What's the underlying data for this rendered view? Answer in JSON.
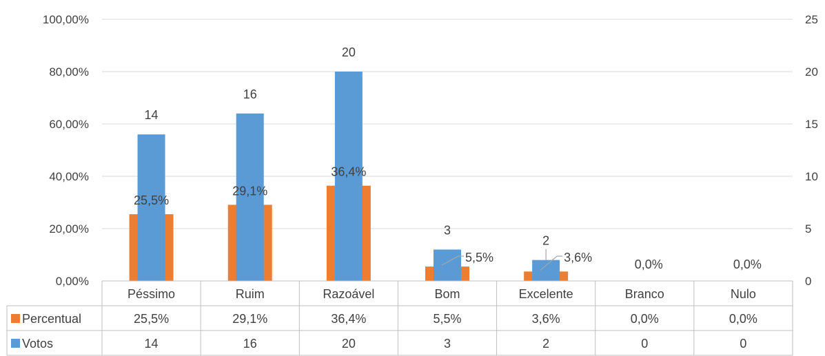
{
  "chart_data": {
    "type": "bar",
    "categories": [
      "Péssimo",
      "Ruim",
      "Razoável",
      "Bom",
      "Excelente",
      "Branco",
      "Nulo"
    ],
    "series": [
      {
        "name": "Percentual",
        "axis": "left",
        "color": "#ED7D31",
        "values": [
          25.5,
          29.1,
          36.4,
          5.5,
          3.6,
          0.0,
          0.0
        ],
        "labels": [
          "25,5%",
          "29,1%",
          "36,4%",
          "5,5%",
          "3,6%",
          "0,0%",
          "0,0%"
        ]
      },
      {
        "name": "Votos",
        "axis": "right",
        "color": "#5B9BD5",
        "values": [
          14,
          16,
          20,
          3,
          2,
          0,
          0
        ],
        "labels": [
          "14",
          "16",
          "20",
          "3",
          "2",
          "0",
          "0"
        ]
      }
    ],
    "y_left": {
      "range": [
        0,
        100
      ],
      "ticks": [
        0,
        20,
        40,
        60,
        80,
        100
      ],
      "tick_labels": [
        "0,00%",
        "20,00%",
        "40,00%",
        "60,00%",
        "80,00%",
        "100,00%"
      ]
    },
    "y_right": {
      "range": [
        0,
        25
      ],
      "ticks": [
        0,
        5,
        10,
        15,
        20,
        25
      ],
      "tick_labels": [
        "0",
        "5",
        "10",
        "15",
        "20",
        "25"
      ]
    },
    "grid": true,
    "legend": "data-table",
    "gridline_color": "#D9D9D9",
    "table_border_color": "#BFBFBF",
    "title": "",
    "xlabel": "",
    "ylabel": ""
  }
}
